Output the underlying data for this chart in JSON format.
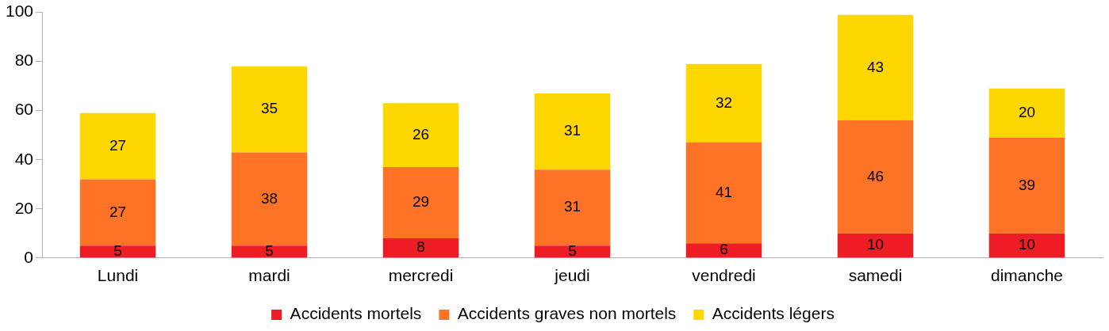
{
  "chart_data": {
    "type": "bar",
    "stacked": true,
    "data_labels": true,
    "legend": "bottom",
    "grid": false,
    "categories": [
      "Lundi",
      "mardi",
      "mercredi",
      "jeudi",
      "vendredi",
      "samedi",
      "dimanche"
    ],
    "series": [
      {
        "name": "Accidents mortels",
        "color": "#ee1c25",
        "values": [
          5,
          5,
          8,
          5,
          6,
          10,
          10
        ]
      },
      {
        "name": "Accidents graves non mortels",
        "color": "#ff7326",
        "values": [
          27,
          38,
          29,
          31,
          41,
          46,
          39
        ]
      },
      {
        "name": "Accidents légers",
        "color": "#ffd700",
        "values": [
          27,
          35,
          26,
          31,
          32,
          43,
          20
        ]
      }
    ],
    "ylim": [
      0,
      100
    ],
    "yticks": [
      0,
      20,
      40,
      60,
      80,
      100
    ]
  }
}
